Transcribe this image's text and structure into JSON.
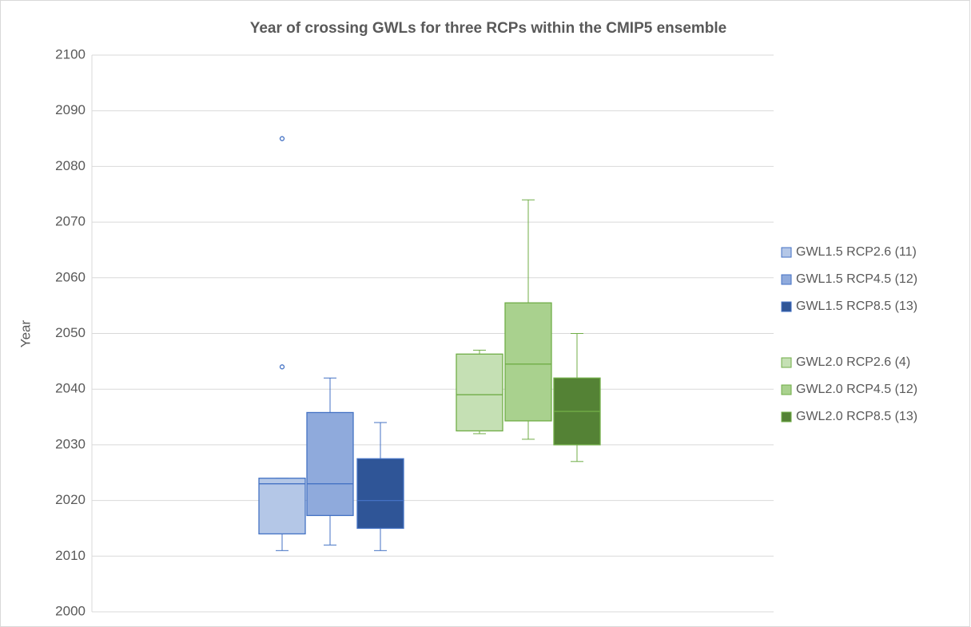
{
  "chart_data": {
    "type": "box",
    "title": "Year of crossing GWLs for three RCPs within the CMIP5 ensemble",
    "y_label": "Year",
    "ylim": [
      2000,
      2100
    ],
    "yticks": [
      2000,
      2010,
      2020,
      2030,
      2040,
      2050,
      2060,
      2070,
      2080,
      2090,
      2100
    ],
    "grid": true,
    "legend": "right",
    "series": [
      {
        "name": "GWL1.5 RCP2.6 (11)",
        "color": "#b4c7e7",
        "edge": "#4472c4",
        "whisker_low": 2011,
        "q1": 2014,
        "median": 2023,
        "q3": 2024,
        "whisker_high": 2024,
        "outliers": [
          2044,
          2085
        ]
      },
      {
        "name": "GWL1.5 RCP4.5 (12)",
        "color": "#8faadc",
        "edge": "#4472c4",
        "whisker_low": 2012,
        "q1": 2017.3,
        "median": 2023,
        "q3": 2035.8,
        "whisker_high": 2042,
        "outliers": []
      },
      {
        "name": "GWL1.5 RCP8.5 (13)",
        "color": "#2f5597",
        "edge": "#4472c4",
        "whisker_low": 2011,
        "q1": 2015,
        "median": 2020,
        "q3": 2027.5,
        "whisker_high": 2034,
        "outliers": []
      },
      {
        "name": "GWL2.0 RCP2.6 (4)",
        "color": "#c5e0b4",
        "edge": "#70ad47",
        "whisker_low": 2032,
        "q1": 2032.5,
        "median": 2039,
        "q3": 2046.3,
        "whisker_high": 2047,
        "outliers": []
      },
      {
        "name": "GWL2.0 RCP4.5 (12)",
        "color": "#a9d18e",
        "edge": "#70ad47",
        "whisker_low": 2031,
        "q1": 2034.3,
        "median": 2044.5,
        "q3": 2055.5,
        "whisker_high": 2074,
        "outliers": []
      },
      {
        "name": "GWL2.0 RCP8.5 (13)",
        "color": "#548235",
        "edge": "#70ad47",
        "whisker_low": 2027,
        "q1": 2030,
        "median": 2036,
        "q3": 2042,
        "whisker_high": 2050,
        "outliers": []
      }
    ]
  }
}
